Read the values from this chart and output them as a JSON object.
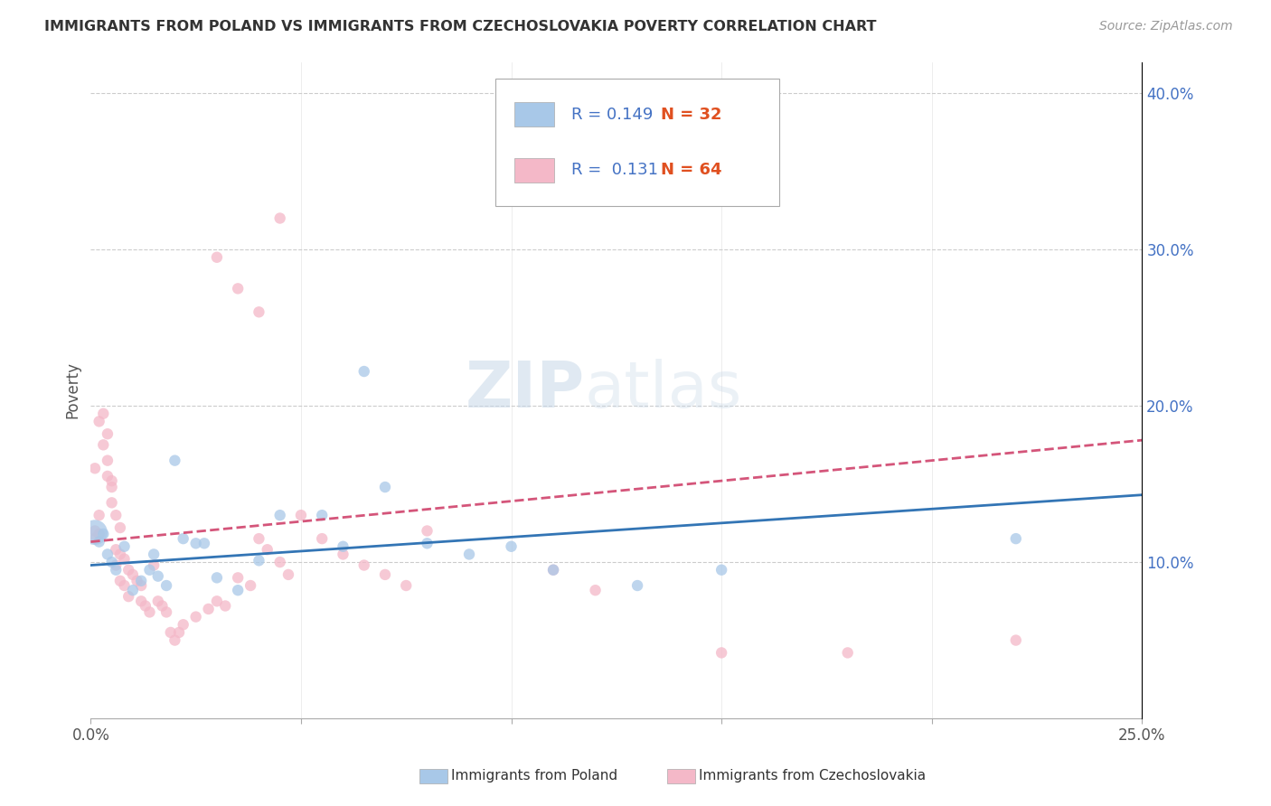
{
  "title": "IMMIGRANTS FROM POLAND VS IMMIGRANTS FROM CZECHOSLOVAKIA POVERTY CORRELATION CHART",
  "source": "Source: ZipAtlas.com",
  "ylabel": "Poverty",
  "legend_label_blue": "Immigrants from Poland",
  "legend_label_pink": "Immigrants from Czechoslovakia",
  "r_blue": 0.149,
  "n_blue": 32,
  "r_pink": 0.131,
  "n_pink": 64,
  "xlim": [
    0.0,
    0.25
  ],
  "ylim": [
    0.0,
    0.42
  ],
  "xticks": [
    0.0,
    0.05,
    0.1,
    0.15,
    0.2,
    0.25
  ],
  "yticks_right": [
    0.1,
    0.2,
    0.3,
    0.4
  ],
  "blue_color": "#a8c8e8",
  "pink_color": "#f4b8c8",
  "blue_line_color": "#3375b5",
  "pink_line_color": "#d4557a",
  "blue_scatter": [
    [
      0.001,
      0.119
    ],
    [
      0.002,
      0.113
    ],
    [
      0.003,
      0.118
    ],
    [
      0.004,
      0.105
    ],
    [
      0.005,
      0.1
    ],
    [
      0.006,
      0.095
    ],
    [
      0.008,
      0.11
    ],
    [
      0.01,
      0.082
    ],
    [
      0.012,
      0.088
    ],
    [
      0.014,
      0.095
    ],
    [
      0.015,
      0.105
    ],
    [
      0.016,
      0.091
    ],
    [
      0.018,
      0.085
    ],
    [
      0.02,
      0.165
    ],
    [
      0.022,
      0.115
    ],
    [
      0.025,
      0.112
    ],
    [
      0.027,
      0.112
    ],
    [
      0.03,
      0.09
    ],
    [
      0.035,
      0.082
    ],
    [
      0.04,
      0.101
    ],
    [
      0.045,
      0.13
    ],
    [
      0.055,
      0.13
    ],
    [
      0.06,
      0.11
    ],
    [
      0.065,
      0.222
    ],
    [
      0.07,
      0.148
    ],
    [
      0.08,
      0.112
    ],
    [
      0.09,
      0.105
    ],
    [
      0.1,
      0.11
    ],
    [
      0.11,
      0.095
    ],
    [
      0.13,
      0.085
    ],
    [
      0.15,
      0.095
    ],
    [
      0.22,
      0.115
    ]
  ],
  "blue_sizes": [
    400,
    80,
    80,
    80,
    80,
    80,
    80,
    80,
    80,
    80,
    80,
    80,
    80,
    80,
    80,
    80,
    80,
    80,
    80,
    80,
    80,
    80,
    80,
    80,
    80,
    80,
    80,
    80,
    80,
    80,
    80,
    80
  ],
  "pink_scatter": [
    [
      0.001,
      0.12
    ],
    [
      0.001,
      0.115
    ],
    [
      0.001,
      0.16
    ],
    [
      0.002,
      0.13
    ],
    [
      0.002,
      0.118
    ],
    [
      0.002,
      0.19
    ],
    [
      0.003,
      0.175
    ],
    [
      0.003,
      0.195
    ],
    [
      0.004,
      0.165
    ],
    [
      0.004,
      0.182
    ],
    [
      0.004,
      0.155
    ],
    [
      0.005,
      0.148
    ],
    [
      0.005,
      0.152
    ],
    [
      0.005,
      0.138
    ],
    [
      0.006,
      0.13
    ],
    [
      0.006,
      0.108
    ],
    [
      0.006,
      0.098
    ],
    [
      0.007,
      0.122
    ],
    [
      0.007,
      0.105
    ],
    [
      0.007,
      0.088
    ],
    [
      0.008,
      0.102
    ],
    [
      0.008,
      0.085
    ],
    [
      0.009,
      0.095
    ],
    [
      0.009,
      0.078
    ],
    [
      0.01,
      0.092
    ],
    [
      0.011,
      0.088
    ],
    [
      0.012,
      0.085
    ],
    [
      0.012,
      0.075
    ],
    [
      0.013,
      0.072
    ],
    [
      0.014,
      0.068
    ],
    [
      0.015,
      0.098
    ],
    [
      0.016,
      0.075
    ],
    [
      0.017,
      0.072
    ],
    [
      0.018,
      0.068
    ],
    [
      0.019,
      0.055
    ],
    [
      0.02,
      0.05
    ],
    [
      0.021,
      0.055
    ],
    [
      0.022,
      0.06
    ],
    [
      0.025,
      0.065
    ],
    [
      0.028,
      0.07
    ],
    [
      0.03,
      0.075
    ],
    [
      0.032,
      0.072
    ],
    [
      0.035,
      0.09
    ],
    [
      0.038,
      0.085
    ],
    [
      0.04,
      0.115
    ],
    [
      0.042,
      0.108
    ],
    [
      0.045,
      0.1
    ],
    [
      0.047,
      0.092
    ],
    [
      0.05,
      0.13
    ],
    [
      0.055,
      0.115
    ],
    [
      0.06,
      0.105
    ],
    [
      0.065,
      0.098
    ],
    [
      0.07,
      0.092
    ],
    [
      0.075,
      0.085
    ],
    [
      0.03,
      0.295
    ],
    [
      0.035,
      0.275
    ],
    [
      0.04,
      0.26
    ],
    [
      0.045,
      0.32
    ],
    [
      0.08,
      0.12
    ],
    [
      0.11,
      0.095
    ],
    [
      0.12,
      0.082
    ],
    [
      0.15,
      0.042
    ],
    [
      0.18,
      0.042
    ],
    [
      0.22,
      0.05
    ]
  ],
  "blue_trend": [
    0.098,
    0.143
  ],
  "pink_trend": [
    0.113,
    0.178
  ],
  "watermark_zip": "ZIP",
  "watermark_atlas": "atlas",
  "background_color": "#ffffff",
  "grid_color": "#cccccc"
}
